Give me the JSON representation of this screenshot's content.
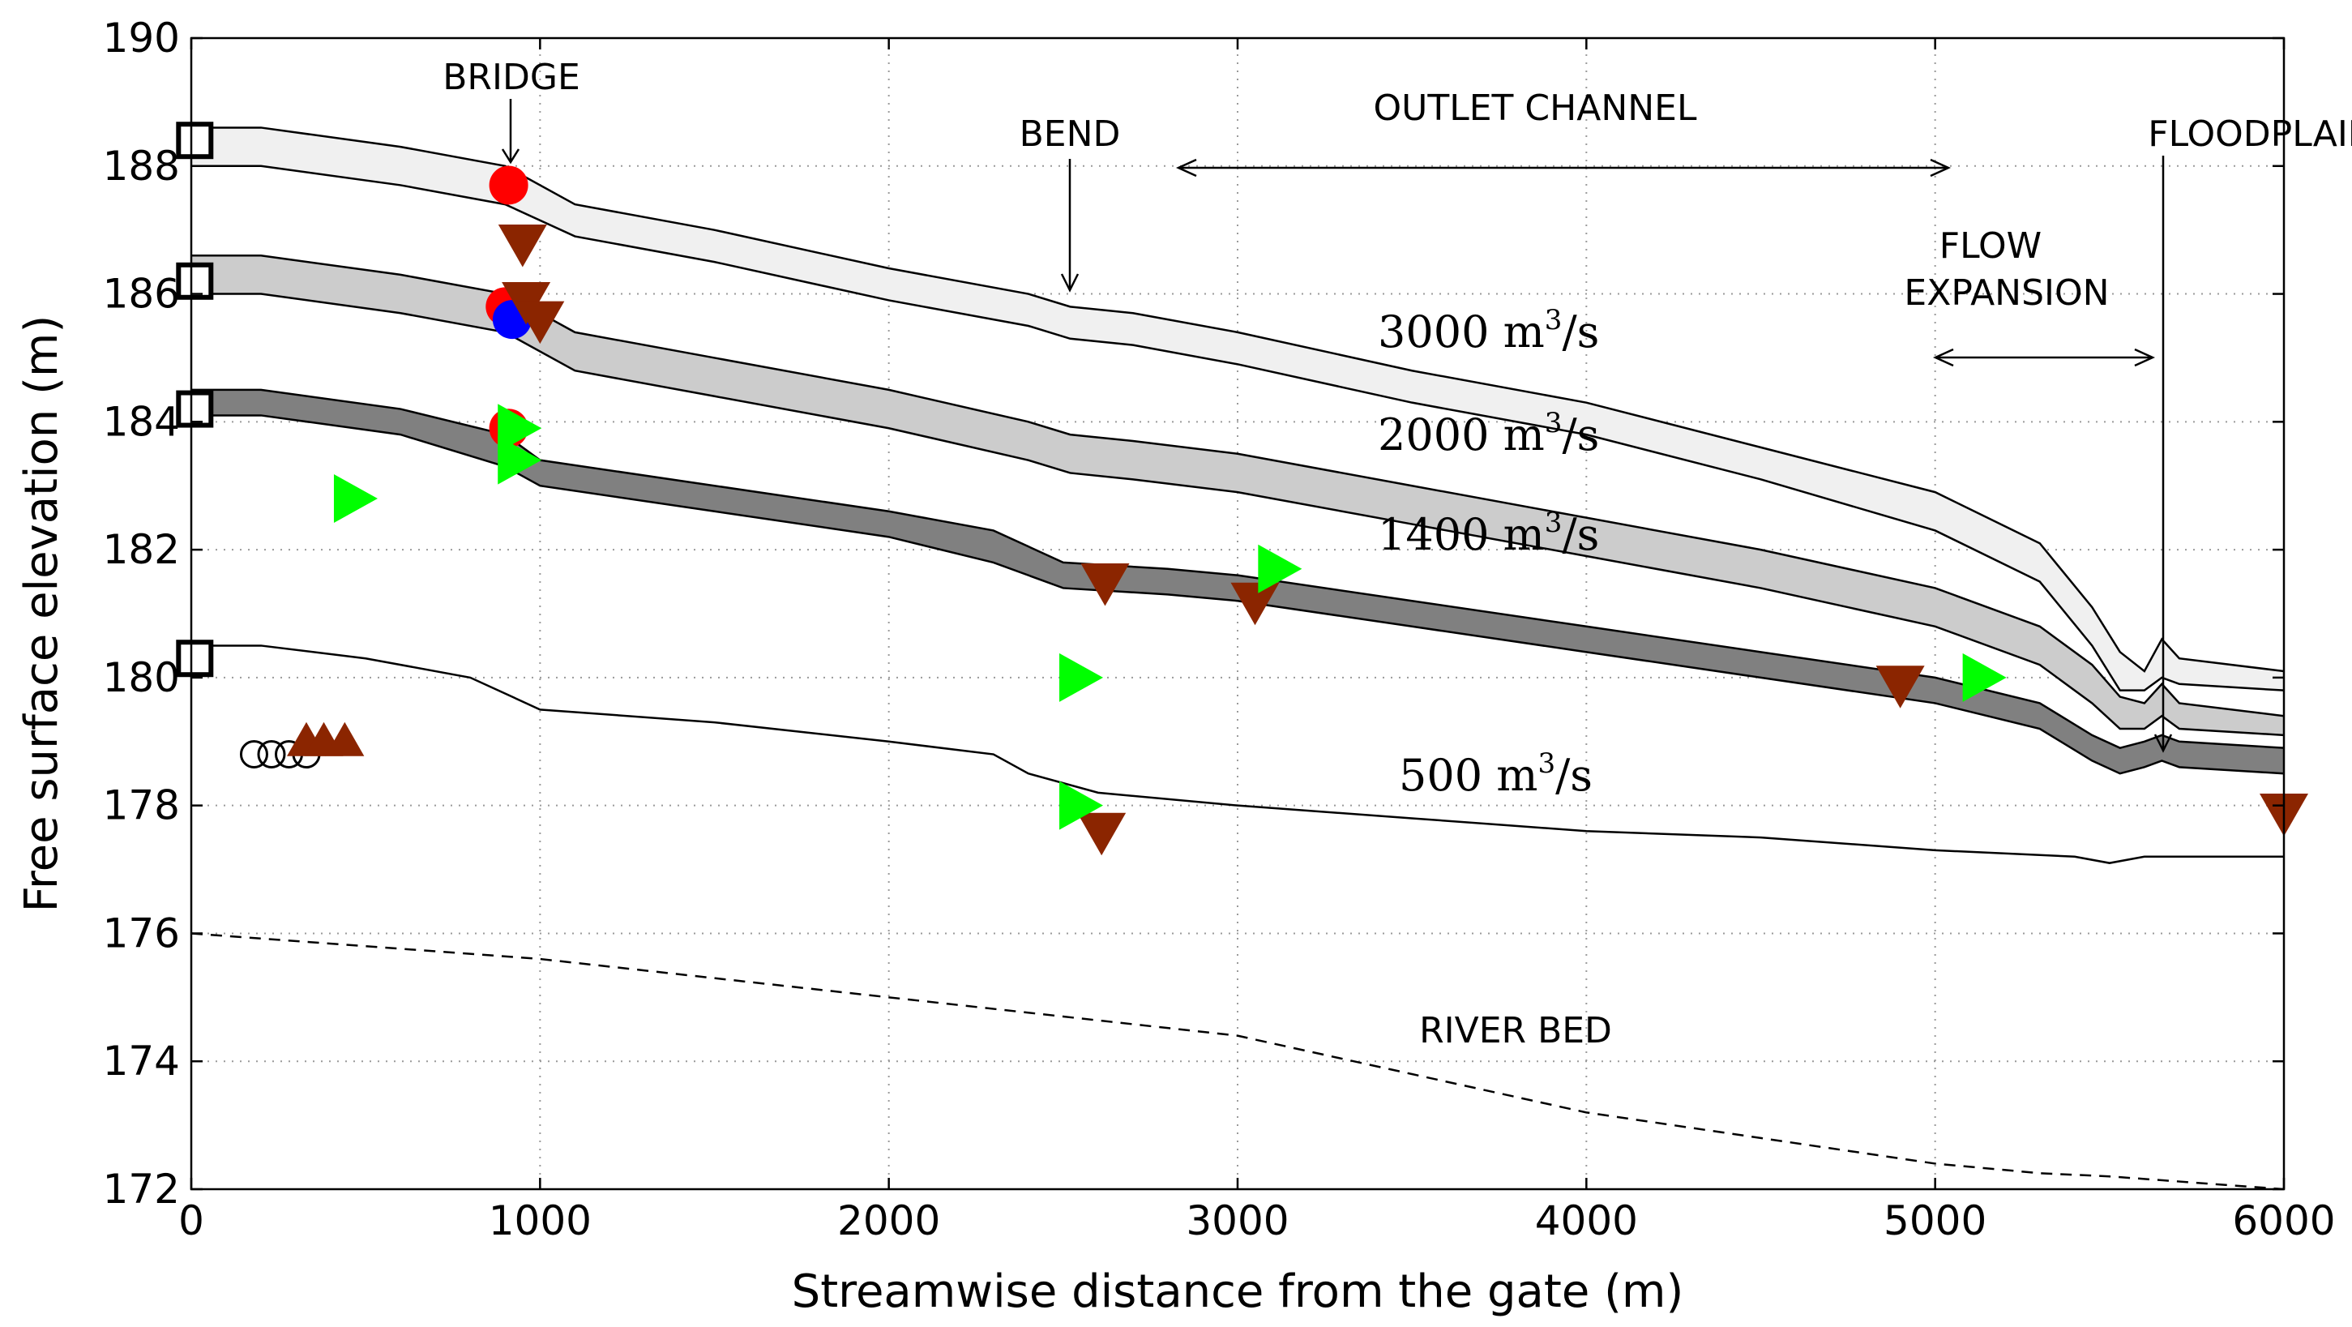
{
  "chart_data": {
    "type": "line",
    "title": "",
    "xlabel": "Streamwise distance from the gate (m)",
    "ylabel": "Free surface elevation (m)",
    "xlim": [
      0,
      6000
    ],
    "ylim": [
      172,
      190
    ],
    "xticks": [
      0,
      1000,
      2000,
      3000,
      4000,
      5000,
      6000
    ],
    "yticks": [
      172,
      174,
      176,
      178,
      180,
      182,
      184,
      186,
      188,
      190
    ],
    "grid": true,
    "bands": [
      {
        "name": "3000 m3/s",
        "fill": "#f0f0f0",
        "x": [
          0,
          200,
          600,
          900,
          1100,
          1500,
          2000,
          2400,
          2520,
          2700,
          3000,
          3500,
          4000,
          4500,
          5000,
          5300,
          5450,
          5530,
          5600,
          5650,
          5700,
          6000
        ],
        "upper": [
          188.6,
          188.6,
          188.3,
          188.0,
          187.4,
          187.0,
          186.4,
          186.0,
          185.8,
          185.7,
          185.4,
          184.8,
          184.3,
          183.6,
          182.9,
          182.1,
          181.1,
          180.4,
          180.1,
          180.6,
          180.3,
          180.1
        ],
        "lower": [
          188.0,
          188.0,
          187.7,
          187.4,
          186.9,
          186.5,
          185.9,
          185.5,
          185.3,
          185.2,
          184.9,
          184.3,
          183.8,
          183.1,
          182.3,
          181.5,
          180.5,
          179.8,
          179.8,
          180.0,
          179.9,
          179.8
        ]
      },
      {
        "name": "2000 m3/s",
        "fill": "#cccccc",
        "x": [
          0,
          200,
          600,
          900,
          1100,
          1500,
          2000,
          2400,
          2520,
          2700,
          3000,
          3500,
          4000,
          4500,
          5000,
          5300,
          5450,
          5530,
          5600,
          5650,
          5700,
          6000
        ],
        "upper": [
          186.6,
          186.6,
          186.3,
          186.0,
          185.4,
          185.0,
          184.5,
          184.0,
          183.8,
          183.7,
          183.5,
          183.0,
          182.5,
          182.0,
          181.4,
          180.8,
          180.2,
          179.7,
          179.6,
          179.9,
          179.6,
          179.4
        ],
        "lower": [
          186.0,
          186.0,
          185.7,
          185.4,
          184.8,
          184.4,
          183.9,
          183.4,
          183.2,
          183.1,
          182.9,
          182.4,
          181.9,
          181.4,
          180.8,
          180.2,
          179.6,
          179.2,
          179.2,
          179.4,
          179.2,
          179.1
        ]
      },
      {
        "name": "1400 m3/s",
        "fill": "#808080",
        "x": [
          0,
          200,
          600,
          900,
          1000,
          1500,
          2000,
          2300,
          2500,
          2800,
          3000,
          3500,
          4000,
          4500,
          5000,
          5300,
          5450,
          5530,
          5600,
          5650,
          5700,
          6000
        ],
        "upper": [
          184.5,
          184.5,
          184.2,
          183.8,
          183.4,
          183.0,
          182.6,
          182.3,
          181.8,
          181.7,
          181.6,
          181.2,
          180.8,
          180.4,
          180.0,
          179.6,
          179.1,
          178.9,
          179.0,
          179.1,
          179.0,
          178.9
        ],
        "lower": [
          184.1,
          184.1,
          183.8,
          183.3,
          183.0,
          182.6,
          182.2,
          181.8,
          181.4,
          181.3,
          181.2,
          180.8,
          180.4,
          180.0,
          179.6,
          179.2,
          178.7,
          178.5,
          178.6,
          178.7,
          178.6,
          178.5
        ]
      }
    ],
    "lines": [
      {
        "name": "500 m3/s",
        "style": "solid",
        "x": [
          0,
          200,
          500,
          800,
          1000,
          1500,
          2000,
          2300,
          2400,
          2600,
          3000,
          3500,
          4000,
          4500,
          5000,
          5400,
          5500,
          5600,
          6000
        ],
        "y": [
          180.5,
          180.5,
          180.3,
          180.0,
          179.5,
          179.3,
          179.0,
          178.8,
          178.5,
          178.2,
          178.0,
          177.8,
          177.6,
          177.5,
          177.3,
          177.2,
          177.1,
          177.2,
          177.2
        ]
      },
      {
        "name": "RIVER BED",
        "style": "dashed",
        "x": [
          0,
          500,
          1000,
          1500,
          2000,
          2500,
          3000,
          3500,
          4000,
          4500,
          5000,
          5300,
          5500,
          6000
        ],
        "y": [
          176.0,
          175.8,
          175.6,
          175.3,
          175.0,
          174.7,
          174.4,
          173.8,
          173.2,
          172.8,
          172.4,
          172.25,
          172.2,
          172.0
        ]
      }
    ],
    "markers": {
      "open_squares": {
        "x": [
          10,
          10,
          10,
          10
        ],
        "y": [
          188.4,
          186.2,
          184.2,
          180.3
        ]
      },
      "red_circles": {
        "color": "#ff0000",
        "x": [
          910,
          900,
          910
        ],
        "y": [
          187.7,
          185.8,
          183.9
        ]
      },
      "blue_circles": {
        "color": "#0000ff",
        "x": [
          920
        ],
        "y": [
          185.6
        ]
      },
      "open_circles": {
        "x": [
          180,
          230,
          280,
          330
        ],
        "y": [
          178.8,
          178.8,
          178.8,
          178.8
        ]
      },
      "brown_triangles_down": {
        "color": "#8b2500",
        "x": [
          950,
          960,
          1000,
          2620,
          2610,
          3050,
          4900,
          6000
        ],
        "y": [
          186.8,
          185.9,
          185.6,
          181.5,
          177.6,
          181.2,
          179.9,
          177.9
        ]
      },
      "brown_triangles_up": {
        "color": "#8b2500",
        "x": [
          330,
          380,
          440
        ],
        "y": [
          179.0,
          179.0,
          179.0
        ]
      },
      "green_triangles_right": {
        "color": "#00ff00",
        "x": [
          460,
          930,
          930,
          2540,
          2540,
          3110,
          5130
        ],
        "y": [
          182.8,
          183.9,
          183.4,
          180.0,
          178.0,
          181.7,
          180.0
        ]
      }
    },
    "annotations": {
      "bridge": "BRIDGE",
      "bend": "BEND",
      "outlet_channel": "OUTLET CHANNEL",
      "floodplain": "FLOODPLAIN",
      "flow": "FLOW",
      "expansion": "EXPANSION",
      "river_bed": "RIVER BED"
    },
    "flow_labels": {
      "q3000_num": "3000 m",
      "q3000_sup": "3",
      "q3000_unit": "/s",
      "q2000_num": "2000 m",
      "q2000_sup": "3",
      "q2000_unit": "/s",
      "q1400_num": "1400 m",
      "q1400_sup": "3",
      "q1400_unit": "/s",
      "q500_num": "500 m",
      "q500_sup": "3",
      "q500_unit": "/s"
    }
  }
}
